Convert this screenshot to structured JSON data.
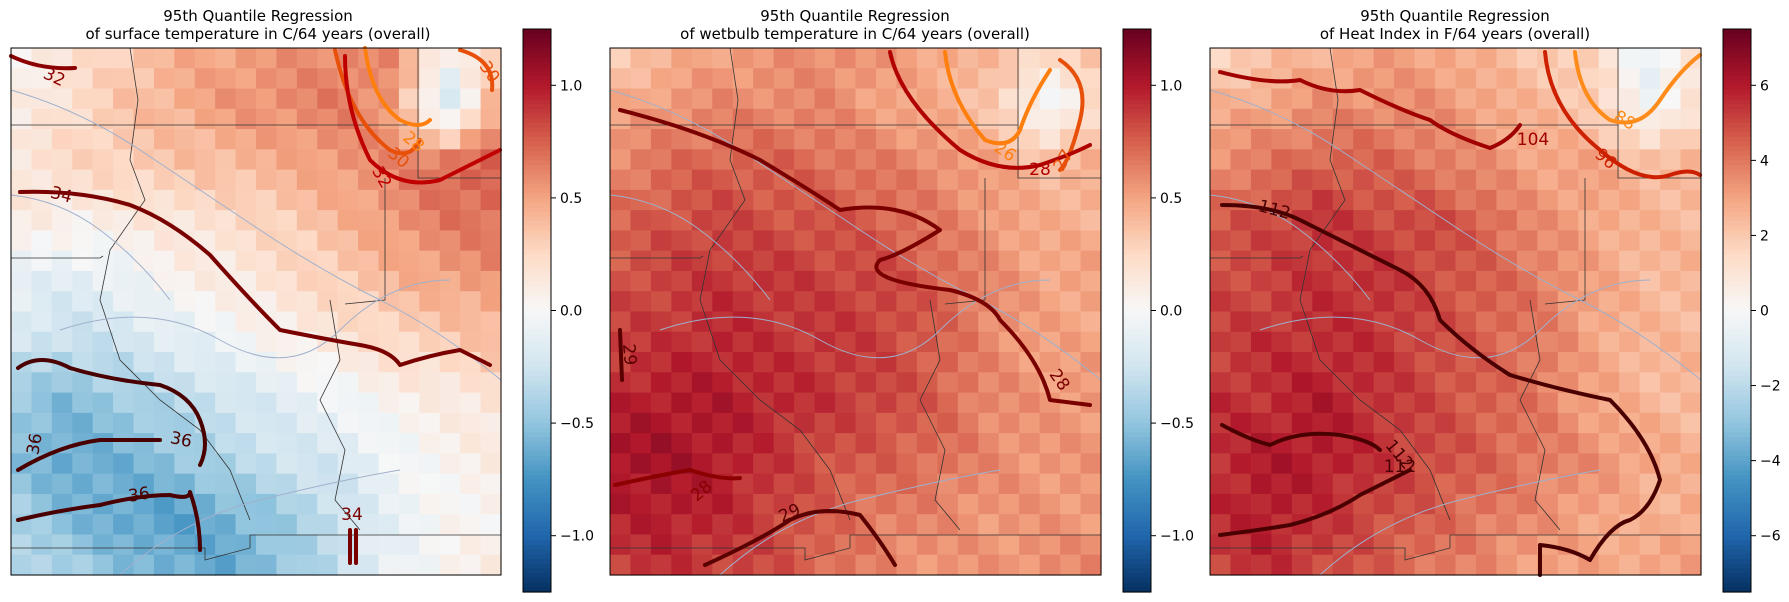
{
  "figure": {
    "background": "#ffffff",
    "colormap": [
      "#053061",
      "#2166ac",
      "#4393c3",
      "#92c5de",
      "#d1e5f0",
      "#f7f7f7",
      "#fddbc7",
      "#f4a582",
      "#d6604d",
      "#b2182b",
      "#67001f"
    ]
  },
  "chart_data": [
    {
      "type": "heatmap",
      "title": "95th Quantile Regression\nof surface temperature in C/64 years (overall)",
      "colorbar": {
        "vmin": -1.25,
        "vmax": 1.25,
        "ticks": [
          -1.0,
          -0.5,
          0.0,
          0.5,
          1.0
        ],
        "tick_labels": [
          "−1.0",
          "−0.5",
          "0.0",
          "0.5",
          "1.0"
        ]
      },
      "field": {
        "rows": 10,
        "cols": 10,
        "values": [
          [
            0.05,
            0.15,
            0.3,
            0.45,
            0.5,
            0.55,
            0.6,
            0.6,
            0.1,
            0.2
          ],
          [
            0.05,
            0.2,
            0.35,
            0.45,
            0.55,
            0.6,
            0.65,
            0.55,
            -0.3,
            0.6
          ],
          [
            0.15,
            0.25,
            0.3,
            0.35,
            0.4,
            0.45,
            0.55,
            0.6,
            0.75,
            0.75
          ],
          [
            0.1,
            0.05,
            0.1,
            0.15,
            0.2,
            0.3,
            0.4,
            0.55,
            0.65,
            0.7
          ],
          [
            -0.1,
            -0.15,
            -0.1,
            0.05,
            0.1,
            0.2,
            0.3,
            0.4,
            0.5,
            0.55
          ],
          [
            -0.2,
            -0.3,
            -0.25,
            -0.15,
            -0.05,
            0.05,
            0.15,
            0.25,
            0.3,
            0.4
          ],
          [
            -0.45,
            -0.55,
            -0.45,
            -0.35,
            -0.25,
            -0.15,
            -0.05,
            0.05,
            0.1,
            0.2
          ],
          [
            -0.5,
            -0.65,
            -0.6,
            -0.5,
            -0.35,
            -0.25,
            -0.2,
            -0.05,
            0.05,
            0.1
          ],
          [
            -0.4,
            -0.55,
            -0.65,
            -0.7,
            -0.6,
            -0.45,
            -0.3,
            -0.1,
            0.0,
            0.05
          ],
          [
            -0.3,
            -0.4,
            -0.5,
            -0.6,
            -0.65,
            -0.5,
            -0.3,
            -0.1,
            0.05,
            0.1
          ]
        ]
      },
      "contours": [
        {
          "level": 32,
          "color": "#8b0000",
          "label": "32"
        },
        {
          "level": 30,
          "color": "#e8500a",
          "label": "30"
        },
        {
          "level": 28,
          "color": "#ff7f0e",
          "label": "28"
        },
        {
          "level": 30,
          "color": "#e8500a",
          "label": "30"
        },
        {
          "level": 32,
          "color": "#c00000",
          "label": "32"
        },
        {
          "level": 34,
          "color": "#7a0000",
          "label": "34"
        },
        {
          "level": 36,
          "color": "#4a0000",
          "label": "36"
        },
        {
          "level": 36,
          "color": "#4a0000",
          "label": "36"
        },
        {
          "level": 36,
          "color": "#4a0000",
          "label": "36"
        },
        {
          "level": 34,
          "color": "#7a0000",
          "label": "34"
        }
      ]
    },
    {
      "type": "heatmap",
      "title": "95th Quantile Regression\nof wetbulb temperature in C/64 years (overall)",
      "colorbar": {
        "vmin": -1.25,
        "vmax": 1.25,
        "ticks": [
          -1.0,
          -0.5,
          0.0,
          0.5,
          1.0
        ],
        "tick_labels": [
          "−1.0",
          "−0.5",
          "0.0",
          "0.5",
          "1.0"
        ]
      },
      "field": {
        "rows": 10,
        "cols": 10,
        "values": [
          [
            0.3,
            0.4,
            0.5,
            0.55,
            0.6,
            0.55,
            0.5,
            0.4,
            0.3,
            0.35
          ],
          [
            0.45,
            0.55,
            0.6,
            0.6,
            0.6,
            0.5,
            0.45,
            0.35,
            -0.1,
            0.3
          ],
          [
            0.6,
            0.7,
            0.75,
            0.75,
            0.7,
            0.65,
            0.6,
            0.5,
            0.4,
            0.45
          ],
          [
            0.7,
            0.8,
            0.85,
            0.8,
            0.8,
            0.75,
            0.65,
            0.55,
            0.45,
            0.45
          ],
          [
            0.8,
            0.85,
            0.9,
            0.9,
            0.85,
            0.85,
            0.75,
            0.6,
            0.5,
            0.5
          ],
          [
            0.85,
            0.9,
            0.95,
            0.9,
            0.9,
            0.85,
            0.75,
            0.6,
            0.5,
            0.5
          ],
          [
            0.95,
            1.0,
            1.0,
            0.95,
            0.9,
            0.85,
            0.75,
            0.6,
            0.55,
            0.55
          ],
          [
            1.05,
            1.05,
            1.0,
            0.9,
            0.8,
            0.75,
            0.7,
            0.6,
            0.55,
            0.55
          ],
          [
            0.95,
            1.0,
            0.95,
            0.85,
            0.75,
            0.65,
            0.6,
            0.55,
            0.55,
            0.55
          ],
          [
            0.85,
            0.9,
            0.85,
            0.8,
            0.7,
            0.6,
            0.55,
            0.55,
            0.6,
            0.6
          ]
        ]
      },
      "contours": [
        {
          "level": 26,
          "color": "#ff7f0e",
          "label": "26"
        },
        {
          "level": 27,
          "color": "#e8500a",
          "label": "27"
        },
        {
          "level": 28,
          "color": "#b00000",
          "label": "28"
        },
        {
          "level": 28,
          "color": "#7a0000",
          "label": "28"
        },
        {
          "level": 29,
          "color": "#5a0000",
          "label": "29"
        },
        {
          "level": 29,
          "color": "#5a0000",
          "label": "29"
        },
        {
          "level": 28,
          "color": "#8b0000",
          "label": "28"
        }
      ]
    },
    {
      "type": "heatmap",
      "title": "95th Quantile Regression\nof Heat Index in F/64 years (overall)",
      "colorbar": {
        "vmin": -7.5,
        "vmax": 7.5,
        "ticks": [
          -6,
          -4,
          -2,
          0,
          2,
          4,
          6
        ],
        "tick_labels": [
          "−6",
          "−4",
          "−2",
          "0",
          "2",
          "4",
          "6"
        ]
      },
      "field": {
        "rows": 10,
        "cols": 10,
        "values": [
          [
            1.5,
            2.0,
            2.5,
            3.0,
            3.0,
            2.5,
            2.0,
            1.5,
            -0.5,
            1.0
          ],
          [
            2.5,
            3.0,
            3.5,
            3.5,
            3.5,
            3.0,
            2.5,
            2.0,
            -0.5,
            1.5
          ],
          [
            3.5,
            4.0,
            4.5,
            4.5,
            4.0,
            3.5,
            3.0,
            3.0,
            2.5,
            2.5
          ],
          [
            4.5,
            5.0,
            5.5,
            5.0,
            5.0,
            4.5,
            3.5,
            3.0,
            2.5,
            2.5
          ],
          [
            5.0,
            5.0,
            5.5,
            5.5,
            5.0,
            4.5,
            4.0,
            3.0,
            2.5,
            2.5
          ],
          [
            5.0,
            5.5,
            5.5,
            5.5,
            5.0,
            4.5,
            4.0,
            3.0,
            2.5,
            2.5
          ],
          [
            5.5,
            5.5,
            6.0,
            5.5,
            5.0,
            4.5,
            4.0,
            3.0,
            2.5,
            2.5
          ],
          [
            5.5,
            6.0,
            6.0,
            5.5,
            5.0,
            4.5,
            4.0,
            3.5,
            3.0,
            2.5
          ],
          [
            5.5,
            6.0,
            5.5,
            5.0,
            4.5,
            4.0,
            3.5,
            3.0,
            2.5,
            3.0
          ],
          [
            5.0,
            5.5,
            5.0,
            4.5,
            4.0,
            3.5,
            3.0,
            3.0,
            3.0,
            3.0
          ]
        ]
      },
      "contours": [
        {
          "level": 104,
          "color": "#a00000",
          "label": "104"
        },
        {
          "level": 96,
          "color": "#cc2000",
          "label": "96"
        },
        {
          "level": 88,
          "color": "#ff8c1a",
          "label": "88"
        },
        {
          "level": 112,
          "color": "#4a0000",
          "label": "112"
        },
        {
          "level": 112,
          "color": "#4a0000",
          "label": "112"
        },
        {
          "level": 112,
          "color": "#4a0000",
          "label": "112"
        }
      ]
    }
  ]
}
